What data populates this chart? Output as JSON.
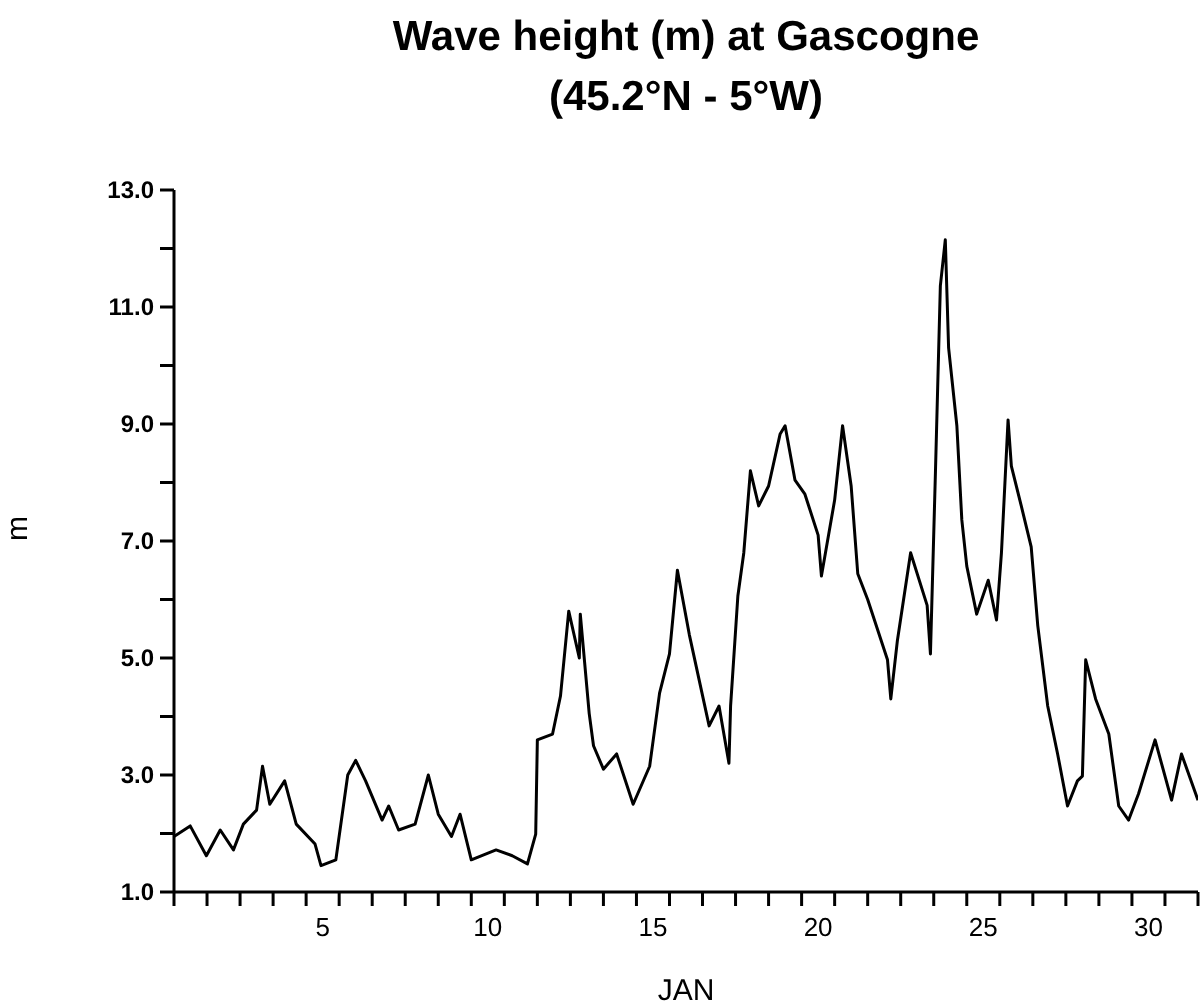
{
  "chart_data": {
    "type": "line",
    "title": "Wave height (m) at Gascogne\n(45.2°N - 5°W)",
    "xlabel": "JAN",
    "ylabel": "m",
    "x": [
      1.0,
      1.49,
      1.98,
      2.4,
      2.8,
      3.1,
      3.5,
      3.68,
      3.9,
      4.35,
      4.7,
      5.27,
      5.45,
      5.9,
      6.26,
      6.5,
      6.8,
      7.3,
      7.5,
      7.8,
      8.3,
      8.7,
      9.0,
      9.4,
      9.66,
      10.0,
      10.75,
      11.24,
      11.7,
      11.95,
      12.0,
      12.46,
      12.7,
      12.95,
      13.27,
      13.3,
      13.57,
      13.7,
      14.0,
      14.4,
      14.9,
      15.4,
      15.7,
      16.0,
      16.24,
      16.6,
      17.2,
      17.5,
      17.8,
      17.85,
      18.07,
      18.25,
      18.45,
      18.7,
      19.0,
      19.35,
      19.5,
      19.8,
      20.1,
      20.5,
      20.6,
      21.0,
      21.24,
      21.5,
      21.7,
      22.0,
      22.6,
      22.7,
      22.9,
      23.3,
      23.8,
      23.9,
      24.05,
      24.2,
      24.35,
      24.45,
      24.7,
      24.85,
      25.0,
      25.3,
      25.65,
      25.9,
      26.05,
      26.25,
      26.35,
      26.65,
      26.95,
      27.15,
      27.45,
      27.75,
      28.05,
      28.35,
      28.5,
      28.6,
      28.9,
      29.3,
      29.6,
      29.9,
      30.2,
      30.7,
      31.2,
      31.5,
      32.0
    ],
    "series": [
      {
        "color": "#000000",
        "values": [
          1.95,
          2.13,
          1.62,
          2.06,
          1.72,
          2.16,
          2.4,
          3.15,
          2.5,
          2.9,
          2.16,
          1.82,
          1.45,
          1.55,
          3.0,
          3.25,
          2.9,
          2.23,
          2.47,
          2.06,
          2.16,
          3.0,
          2.33,
          1.95,
          2.33,
          1.55,
          1.72,
          1.62,
          1.48,
          1.99,
          3.6,
          3.7,
          4.35,
          5.8,
          5.0,
          5.75,
          4.05,
          3.5,
          3.1,
          3.36,
          2.5,
          3.15,
          4.4,
          5.07,
          6.5,
          5.4,
          3.84,
          4.18,
          3.2,
          4.18,
          6.06,
          6.8,
          8.2,
          7.6,
          7.94,
          8.83,
          8.97,
          8.04,
          7.8,
          7.1,
          6.4,
          7.7,
          8.97,
          7.94,
          6.44,
          6.0,
          4.97,
          4.3,
          5.3,
          6.8,
          5.9,
          5.07,
          8.15,
          11.36,
          12.15,
          10.3,
          8.97,
          7.36,
          6.57,
          5.75,
          6.33,
          5.65,
          6.8,
          9.07,
          8.28,
          7.6,
          6.9,
          5.55,
          4.18,
          3.36,
          2.47,
          2.9,
          2.98,
          4.97,
          4.3,
          3.7,
          2.47,
          2.23,
          2.68,
          3.6,
          2.57,
          3.36,
          2.57
        ]
      }
    ],
    "xlim": [
      1,
      32
    ],
    "xticks": [
      {
        "value": 1,
        "label": null
      },
      {
        "value": 2,
        "label": null
      },
      {
        "value": 3,
        "label": null
      },
      {
        "value": 4,
        "label": null
      },
      {
        "value": 5,
        "label": null
      },
      {
        "value": 6,
        "label": null
      },
      {
        "value": 7,
        "label": null
      },
      {
        "value": 8,
        "label": null
      },
      {
        "value": 9,
        "label": null
      },
      {
        "value": 10,
        "label": null
      },
      {
        "value": 11,
        "label": null
      },
      {
        "value": 12,
        "label": null
      },
      {
        "value": 13,
        "label": null
      },
      {
        "value": 14,
        "label": null
      },
      {
        "value": 15,
        "label": null
      },
      {
        "value": 16,
        "label": null
      },
      {
        "value": 17,
        "label": null
      },
      {
        "value": 18,
        "label": null
      },
      {
        "value": 19,
        "label": null
      },
      {
        "value": 20,
        "label": null
      },
      {
        "value": 21,
        "label": null
      },
      {
        "value": 22,
        "label": null
      },
      {
        "value": 23,
        "label": null
      },
      {
        "value": 24,
        "label": null
      },
      {
        "value": 25,
        "label": null
      },
      {
        "value": 26,
        "label": null
      },
      {
        "value": 27,
        "label": null
      },
      {
        "value": 28,
        "label": null
      },
      {
        "value": 29,
        "label": null
      },
      {
        "value": 30,
        "label": null
      },
      {
        "value": 31,
        "label": null
      },
      {
        "value": 32,
        "label": null
      },
      {
        "value": 5.5,
        "label": "5"
      },
      {
        "value": 10.5,
        "label": "10"
      },
      {
        "value": 15.5,
        "label": "15"
      },
      {
        "value": 20.5,
        "label": "20"
      },
      {
        "value": 25.5,
        "label": "25"
      },
      {
        "value": 30.5,
        "label": "30"
      }
    ],
    "ylim": [
      1,
      13
    ],
    "yticks": [
      {
        "value": 1,
        "label": "1.0"
      },
      {
        "value": 2,
        "label": null
      },
      {
        "value": 3,
        "label": "3.0"
      },
      {
        "value": 4,
        "label": null
      },
      {
        "value": 5,
        "label": "5.0"
      },
      {
        "value": 6,
        "label": null
      },
      {
        "value": 7,
        "label": "7.0"
      },
      {
        "value": 8,
        "label": null
      },
      {
        "value": 9,
        "label": "9.0"
      },
      {
        "value": 10,
        "label": null
      },
      {
        "value": 11,
        "label": "11.0"
      },
      {
        "value": 12,
        "label": null
      },
      {
        "value": 13,
        "label": "13.0"
      }
    ],
    "grid": false,
    "legend": false,
    "marker": "none",
    "line_style": "solid"
  }
}
